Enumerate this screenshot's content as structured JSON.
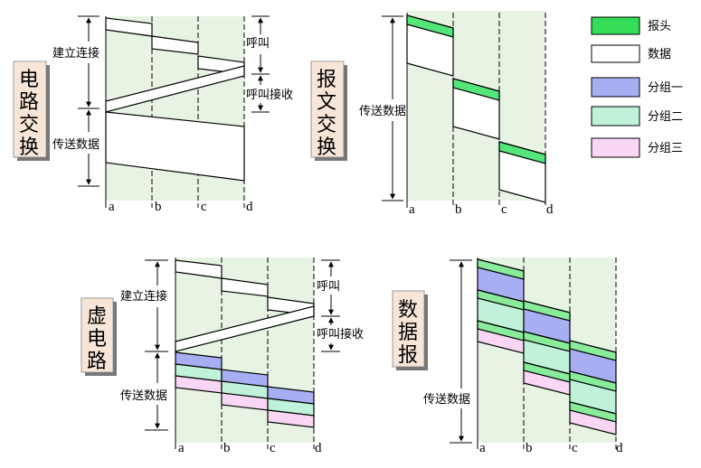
{
  "panels": {
    "circuit": {
      "title_lines": [
        "电",
        "路",
        "交",
        "换"
      ],
      "label_connect": "建立连接",
      "label_transfer": "传送数据",
      "label_call": "呼叫",
      "label_call_recv": "呼叫接收",
      "nodes": [
        "a",
        "b",
        "c",
        "d"
      ]
    },
    "message": {
      "title_lines": [
        "报",
        "文",
        "交",
        "换"
      ],
      "label_transfer": "传送数据",
      "nodes": [
        "a",
        "b",
        "c",
        "d"
      ]
    },
    "virtual": {
      "title_lines": [
        "虚",
        "电",
        "路"
      ],
      "label_connect": "建立连接",
      "label_transfer": "传送数据",
      "label_call": "呼叫",
      "label_call_recv": "呼叫接收",
      "nodes": [
        "a",
        "b",
        "c",
        "d"
      ]
    },
    "datagram": {
      "title_lines": [
        "数",
        "据",
        "报"
      ],
      "label_transfer": "传送数据",
      "nodes": [
        "a",
        "b",
        "c",
        "d"
      ]
    }
  },
  "legend": [
    {
      "label": "报头",
      "color": "#33dd55"
    },
    {
      "label": "数据",
      "color": "#ffffff"
    },
    {
      "label": "分组一",
      "color": "#a7aef2"
    },
    {
      "label": "分组二",
      "color": "#bff2d8"
    },
    {
      "label": "分组三",
      "color": "#f8d6f4"
    }
  ],
  "colors": {
    "column_bg": "#e7f4e3",
    "title_box": "#f7e6d8",
    "header_green": "#55e67a",
    "packet1": "#a7aef2",
    "packet2": "#bff2d8",
    "packet3": "#f8d6f4",
    "packet_header": "#88ec9a"
  }
}
